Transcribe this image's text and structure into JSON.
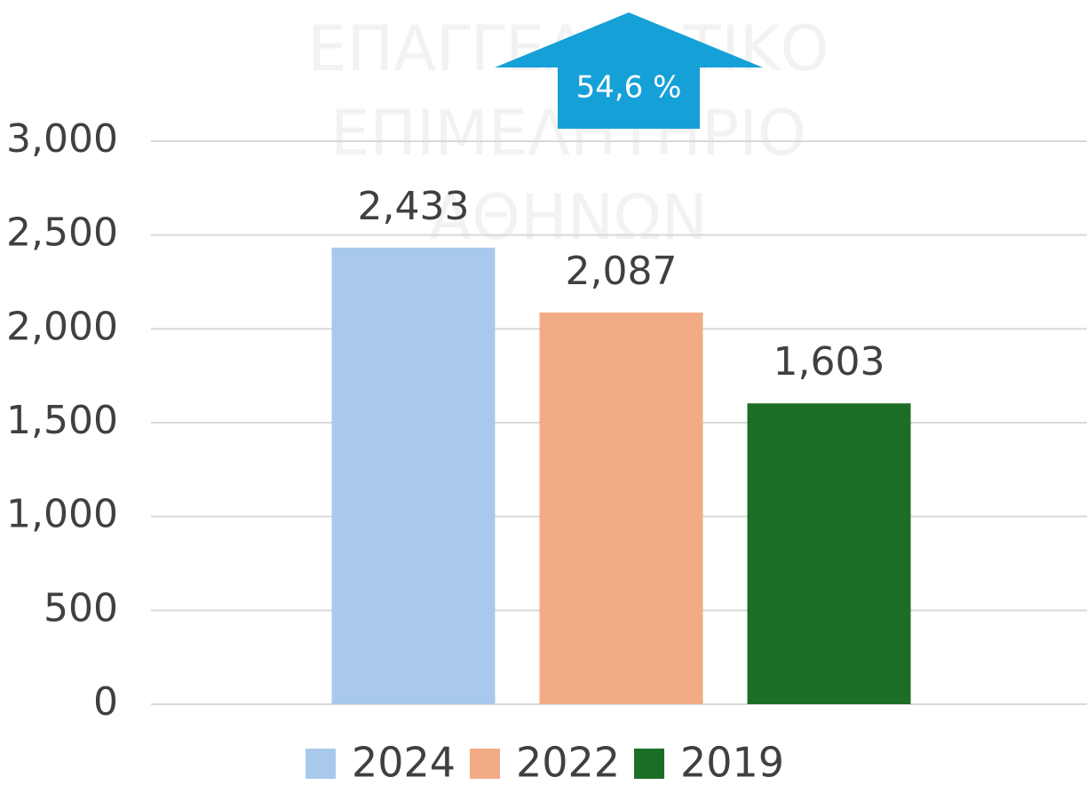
{
  "chart_data": {
    "type": "bar",
    "watermark": [
      "ΕΠΑΓΓΕΛΜΑΤΙΚΟ",
      "ΕΠΙΜΕΛΗΤΗΡΙΟ",
      "ΑΘΗΝΩΝ"
    ],
    "annotation": "54,6 %",
    "annotation_color": "#16a0d8",
    "categories": [
      null
    ],
    "series": [
      {
        "name": "2024",
        "color": "#a8c9ec",
        "values": [
          2433
        ],
        "value_labels": [
          "2,433"
        ]
      },
      {
        "name": "2022",
        "color": "#f2ab85",
        "values": [
          2087
        ],
        "value_labels": [
          "2,087"
        ]
      },
      {
        "name": "2019",
        "color": "#1c6e26",
        "values": [
          1603
        ],
        "value_labels": [
          "1,603"
        ]
      }
    ],
    "ylim": [
      0,
      3000
    ],
    "yticks": [
      0,
      500,
      {
        "value": 1000,
        "label": "1,000"
      },
      {
        "value": 1500,
        "label": "1,500"
      },
      {
        "value": 2000,
        "label": "2,000"
      },
      {
        "value": 2500,
        "label": "2,500"
      },
      {
        "value": 3000,
        "label": "3,000"
      }
    ],
    "grid": true,
    "legend": "bottom"
  }
}
